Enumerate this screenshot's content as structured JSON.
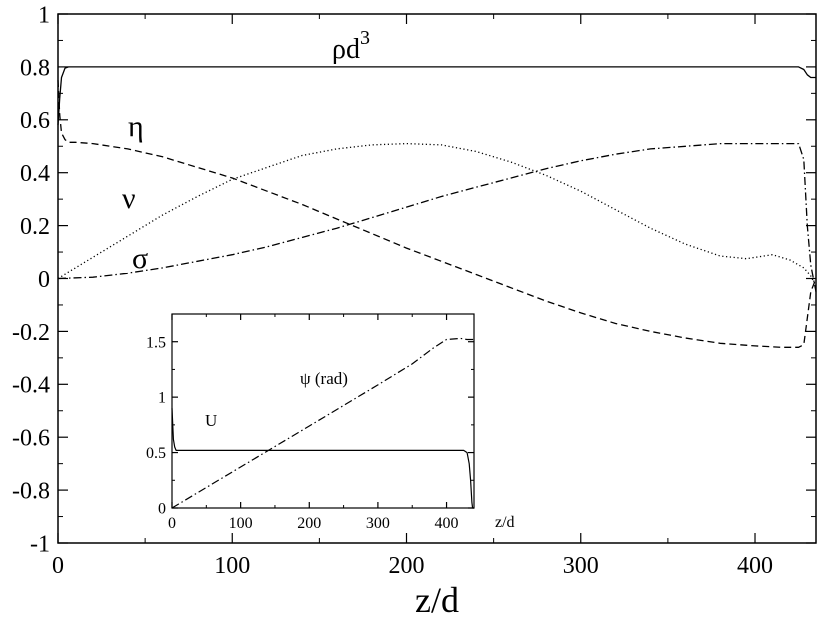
{
  "chart_data": [
    {
      "type": "line",
      "xlabel": "z/d",
      "ylabel": "",
      "xlim": [
        0,
        435
      ],
      "ylim": [
        -1,
        1
      ],
      "xticks": [
        "0",
        "100",
        "200",
        "300",
        "400"
      ],
      "yticks": [
        "-1",
        "-0.8",
        "-0.6",
        "-0.4",
        "-0.2",
        "0",
        "0.2",
        "0.4",
        "0.6",
        "0.8",
        "1"
      ],
      "grid": false,
      "annotations": [
        {
          "text": "ρd",
          "sup": "3",
          "x": 218,
          "y": 0.84
        },
        {
          "text": "η",
          "x": 22,
          "y": 0.59
        },
        {
          "text": "ν",
          "x": 17,
          "y": 0.32
        },
        {
          "text": "σ",
          "x": 22,
          "y": 0.06
        }
      ],
      "series": [
        {
          "style": "solid",
          "x": [
            0,
            1,
            2,
            4,
            6,
            10,
            50,
            100,
            200,
            300,
            400,
            425,
            428,
            430,
            432,
            435
          ],
          "y": [
            0.58,
            0.68,
            0.76,
            0.795,
            0.8,
            0.8,
            0.8,
            0.8,
            0.8,
            0.8,
            0.8,
            0.8,
            0.79,
            0.77,
            0.76,
            0.76
          ]
        },
        {
          "style": "dashed",
          "x": [
            0,
            1,
            2,
            4,
            6,
            10,
            20,
            40,
            60,
            80,
            100,
            120,
            140,
            160,
            180,
            200,
            220,
            240,
            260,
            280,
            300,
            320,
            340,
            360,
            380,
            400,
            415,
            425,
            428,
            430,
            432,
            435
          ],
          "y": [
            0.75,
            0.62,
            0.55,
            0.525,
            0.515,
            0.515,
            0.51,
            0.49,
            0.46,
            0.42,
            0.38,
            0.33,
            0.28,
            0.225,
            0.17,
            0.115,
            0.065,
            0.015,
            -0.035,
            -0.085,
            -0.13,
            -0.17,
            -0.2,
            -0.225,
            -0.245,
            -0.255,
            -0.26,
            -0.26,
            -0.25,
            -0.15,
            -0.05,
            0
          ]
        },
        {
          "style": "dotted",
          "x": [
            0,
            20,
            40,
            60,
            80,
            100,
            120,
            140,
            160,
            180,
            200,
            220,
            240,
            260,
            280,
            300,
            320,
            340,
            360,
            380,
            395,
            410,
            420,
            428,
            432,
            435
          ],
          "y": [
            0,
            0.08,
            0.16,
            0.24,
            0.31,
            0.375,
            0.42,
            0.465,
            0.49,
            0.505,
            0.51,
            0.505,
            0.48,
            0.44,
            0.39,
            0.33,
            0.26,
            0.19,
            0.13,
            0.085,
            0.075,
            0.09,
            0.07,
            0.04,
            0.01,
            -0.03
          ]
        },
        {
          "style": "dashdot",
          "x": [
            0,
            20,
            40,
            60,
            80,
            100,
            120,
            140,
            160,
            180,
            200,
            220,
            240,
            260,
            280,
            300,
            320,
            340,
            360,
            380,
            400,
            420,
            425,
            428,
            430,
            432,
            435
          ],
          "y": [
            0,
            0.005,
            0.02,
            0.04,
            0.065,
            0.09,
            0.12,
            0.155,
            0.19,
            0.23,
            0.27,
            0.31,
            0.345,
            0.38,
            0.415,
            0.445,
            0.47,
            0.49,
            0.5,
            0.51,
            0.51,
            0.51,
            0.51,
            0.45,
            0.2,
            0.05,
            -0.05
          ]
        }
      ]
    },
    {
      "type": "line",
      "xlabel": "z/d",
      "ylabel": "",
      "xlim": [
        0,
        440
      ],
      "ylim": [
        0,
        1.75
      ],
      "xticks": [
        "0",
        "100",
        "200",
        "300",
        "400"
      ],
      "yticks": [
        "0",
        "0.5",
        "1",
        "1.5"
      ],
      "grid": false,
      "annotations": [
        {
          "text": "ψ (rad)",
          "x": 245,
          "y": 1.17
        },
        {
          "text": "U",
          "x": 75,
          "y": 0.79
        }
      ],
      "series": [
        {
          "style": "solid",
          "x": [
            0,
            2,
            4,
            6,
            10,
            100,
            200,
            300,
            400,
            425,
            430,
            433,
            435,
            437,
            438,
            440
          ],
          "y": [
            0.9,
            0.62,
            0.55,
            0.52,
            0.52,
            0.52,
            0.52,
            0.52,
            0.52,
            0.52,
            0.5,
            0.4,
            0.25,
            0.05,
            0,
            0
          ]
        },
        {
          "style": "dashdot",
          "x": [
            0,
            100,
            200,
            300,
            350,
            380,
            400,
            420,
            430,
            435,
            440
          ],
          "y": [
            0,
            0.37,
            0.74,
            1.11,
            1.3,
            1.44,
            1.52,
            1.53,
            1.52,
            1.52,
            1.52
          ]
        }
      ]
    }
  ]
}
